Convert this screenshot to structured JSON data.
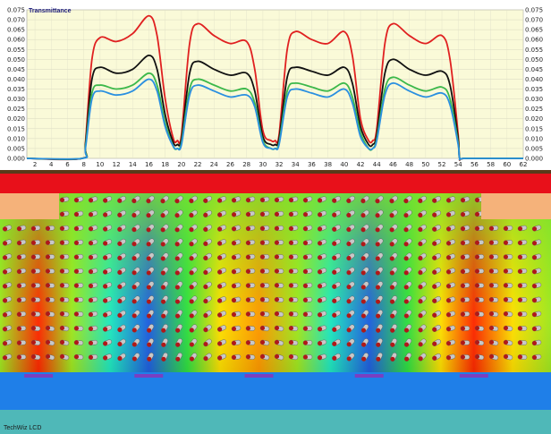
{
  "app": {
    "brand": "TechWiz LCD"
  },
  "chart_data": {
    "type": "line",
    "title": "Transmittance",
    "xlabel": "",
    "ylabel": "",
    "xlim": [
      1,
      62
    ],
    "ylim": [
      0,
      0.075
    ],
    "xticks": [
      2,
      4,
      6,
      8,
      10,
      12,
      14,
      16,
      18,
      20,
      22,
      24,
      26,
      28,
      30,
      32,
      34,
      36,
      38,
      40,
      42,
      44,
      46,
      48,
      50,
      52,
      54,
      56,
      58,
      60,
      62
    ],
    "yticks": [
      "0.000",
      "0.005",
      "0.010",
      "0.015",
      "0.020",
      "0.025",
      "0.030",
      "0.035",
      "0.040",
      "0.045",
      "0.050",
      "0.055",
      "0.060",
      "0.065",
      "0.070",
      "0.075"
    ],
    "grid": true,
    "series": [
      {
        "color": "#e02020",
        "x": [
          1,
          7.8,
          8.2,
          9,
          10,
          12,
          14,
          16,
          17,
          18,
          19,
          19.5,
          20,
          21,
          22,
          24,
          26,
          28,
          29,
          30,
          31,
          31.5,
          32,
          33,
          34,
          36,
          38,
          40,
          41,
          42,
          43,
          43.5,
          44,
          45,
          46,
          48,
          50,
          52,
          53,
          54,
          54.2,
          55,
          62
        ],
        "y": [
          0,
          0,
          0.008,
          0.05,
          0.061,
          0.059,
          0.063,
          0.072,
          0.062,
          0.03,
          0.01,
          0.009,
          0.012,
          0.058,
          0.068,
          0.062,
          0.058,
          0.059,
          0.045,
          0.014,
          0.009,
          0.009,
          0.012,
          0.055,
          0.064,
          0.06,
          0.058,
          0.064,
          0.052,
          0.02,
          0.009,
          0.009,
          0.015,
          0.058,
          0.068,
          0.062,
          0.058,
          0.062,
          0.05,
          0.012,
          0,
          0,
          0
        ]
      },
      {
        "color": "#111111",
        "x": [
          1,
          7.8,
          8.2,
          9,
          10,
          12,
          14,
          16,
          17,
          18,
          19,
          19.5,
          20,
          21,
          22,
          24,
          26,
          28,
          29,
          30,
          31,
          31.5,
          32,
          33,
          34,
          36,
          38,
          40,
          41,
          42,
          43,
          43.5,
          44,
          45,
          46,
          48,
          50,
          52,
          53,
          54,
          54.2,
          55,
          62
        ],
        "y": [
          0,
          0,
          0.007,
          0.04,
          0.046,
          0.043,
          0.045,
          0.052,
          0.045,
          0.022,
          0.008,
          0.007,
          0.01,
          0.043,
          0.049,
          0.045,
          0.042,
          0.043,
          0.034,
          0.011,
          0.007,
          0.007,
          0.01,
          0.041,
          0.046,
          0.044,
          0.042,
          0.046,
          0.038,
          0.016,
          0.007,
          0.007,
          0.012,
          0.043,
          0.05,
          0.045,
          0.042,
          0.044,
          0.037,
          0.01,
          0,
          0,
          0
        ]
      },
      {
        "color": "#3cb84a",
        "x": [
          1,
          7.8,
          8.2,
          9,
          10,
          12,
          14,
          16,
          17,
          18,
          19,
          19.5,
          20,
          21,
          22,
          24,
          26,
          28,
          29,
          30,
          31,
          31.5,
          32,
          33,
          34,
          36,
          38,
          40,
          41,
          42,
          43,
          43.5,
          44,
          45,
          46,
          48,
          50,
          52,
          53,
          54,
          54.2,
          55,
          62
        ],
        "y": [
          0,
          0,
          0.006,
          0.033,
          0.037,
          0.035,
          0.037,
          0.043,
          0.037,
          0.018,
          0.006,
          0.005,
          0.008,
          0.035,
          0.04,
          0.037,
          0.034,
          0.035,
          0.028,
          0.009,
          0.005,
          0.005,
          0.008,
          0.034,
          0.038,
          0.036,
          0.034,
          0.038,
          0.031,
          0.013,
          0.005,
          0.005,
          0.01,
          0.035,
          0.041,
          0.037,
          0.034,
          0.036,
          0.03,
          0.008,
          0,
          0,
          0
        ]
      },
      {
        "color": "#2a8fe0",
        "x": [
          1,
          7.8,
          8.2,
          9,
          10,
          12,
          14,
          16,
          17,
          18,
          19,
          19.5,
          20,
          21,
          22,
          24,
          26,
          28,
          29,
          30,
          31,
          31.5,
          32,
          33,
          34,
          36,
          38,
          40,
          41,
          42,
          43,
          43.5,
          44,
          45,
          46,
          48,
          50,
          52,
          53,
          54,
          54.2,
          55,
          62
        ],
        "y": [
          0,
          0,
          0.005,
          0.03,
          0.034,
          0.032,
          0.034,
          0.04,
          0.034,
          0.016,
          0.006,
          0.005,
          0.007,
          0.032,
          0.037,
          0.034,
          0.031,
          0.032,
          0.026,
          0.008,
          0.005,
          0.005,
          0.007,
          0.031,
          0.035,
          0.033,
          0.031,
          0.035,
          0.028,
          0.011,
          0.005,
          0.005,
          0.009,
          0.032,
          0.038,
          0.034,
          0.031,
          0.033,
          0.027,
          0.007,
          0,
          0,
          0
        ]
      }
    ]
  },
  "simulation": {
    "colors": {
      "top_bar": "#e8101a",
      "side_pad": "#f5b27a",
      "bottom_band": "#1f7fe8",
      "electrode": "#7a3fc0",
      "substrate": "#4fb8b8",
      "divider": "#5a3a1a"
    },
    "field_stops": [
      "#ff2a00",
      "#ff9a00",
      "#ffe000",
      "#a0e820",
      "#30e040",
      "#20e8c0",
      "#30c8f0",
      "#2060e0",
      "#1020b0"
    ],
    "field_profile": [
      {
        "x": 0.0,
        "v": 0.4
      },
      {
        "x": 0.07,
        "v": 0.1
      },
      {
        "x": 0.13,
        "v": 0.45
      },
      {
        "x": 0.2,
        "v": 0.72
      },
      {
        "x": 0.27,
        "v": 0.9
      },
      {
        "x": 0.34,
        "v": 0.55
      },
      {
        "x": 0.4,
        "v": 0.35
      },
      {
        "x": 0.47,
        "v": 0.15
      },
      {
        "x": 0.54,
        "v": 0.45
      },
      {
        "x": 0.6,
        "v": 0.7
      },
      {
        "x": 0.67,
        "v": 0.9
      },
      {
        "x": 0.74,
        "v": 0.55
      },
      {
        "x": 0.8,
        "v": 0.3
      },
      {
        "x": 0.86,
        "v": 0.1
      },
      {
        "x": 0.93,
        "v": 0.35
      },
      {
        "x": 1.0,
        "v": 0.45
      }
    ],
    "lc_rows": 12,
    "lc_cols": 38
  }
}
